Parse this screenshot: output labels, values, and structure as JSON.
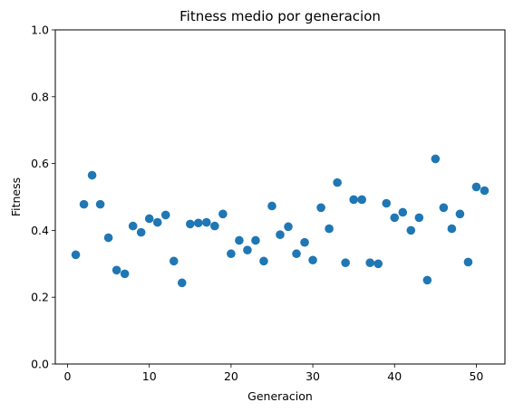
{
  "chart_data": {
    "type": "scatter",
    "title": "Fitness medio por generacion",
    "xlabel": "Generacion",
    "ylabel": "Fitness",
    "xlim": [
      -1.5,
      53.5
    ],
    "ylim": [
      0.0,
      1.0
    ],
    "xticks": [
      0,
      10,
      20,
      30,
      40,
      50
    ],
    "yticks": [
      0.0,
      0.2,
      0.4,
      0.6,
      0.8,
      1.0
    ],
    "xtick_labels": [
      "0",
      "10",
      "20",
      "30",
      "40",
      "50"
    ],
    "ytick_labels": [
      "0.0",
      "0.2",
      "0.4",
      "0.6",
      "0.8",
      "1.0"
    ],
    "grid": false,
    "color": "#1f77b4",
    "series": [
      {
        "x": [
          1,
          2,
          3,
          4,
          5,
          6,
          7,
          8,
          9,
          10,
          11,
          12,
          13,
          14,
          15,
          16,
          17,
          18,
          19,
          20,
          21,
          22,
          23,
          24,
          25,
          26,
          27,
          28,
          29,
          30,
          31,
          32,
          33,
          34,
          35,
          36,
          37,
          38,
          39,
          40,
          41,
          42,
          43,
          44,
          45,
          46,
          47,
          48,
          49,
          50,
          51
        ],
        "y": [
          0.327,
          0.478,
          0.565,
          0.478,
          0.378,
          0.281,
          0.27,
          0.413,
          0.394,
          0.435,
          0.424,
          0.446,
          0.308,
          0.243,
          0.419,
          0.422,
          0.424,
          0.413,
          0.449,
          0.33,
          0.37,
          0.341,
          0.37,
          0.308,
          0.473,
          0.387,
          0.411,
          0.33,
          0.364,
          0.311,
          0.468,
          0.405,
          0.543,
          0.303,
          0.492,
          0.492,
          0.303,
          0.3,
          0.481,
          0.438,
          0.454,
          0.4,
          0.438,
          0.251,
          0.614,
          0.468,
          0.405,
          0.449,
          0.305,
          0.53,
          0.519
        ]
      }
    ]
  }
}
